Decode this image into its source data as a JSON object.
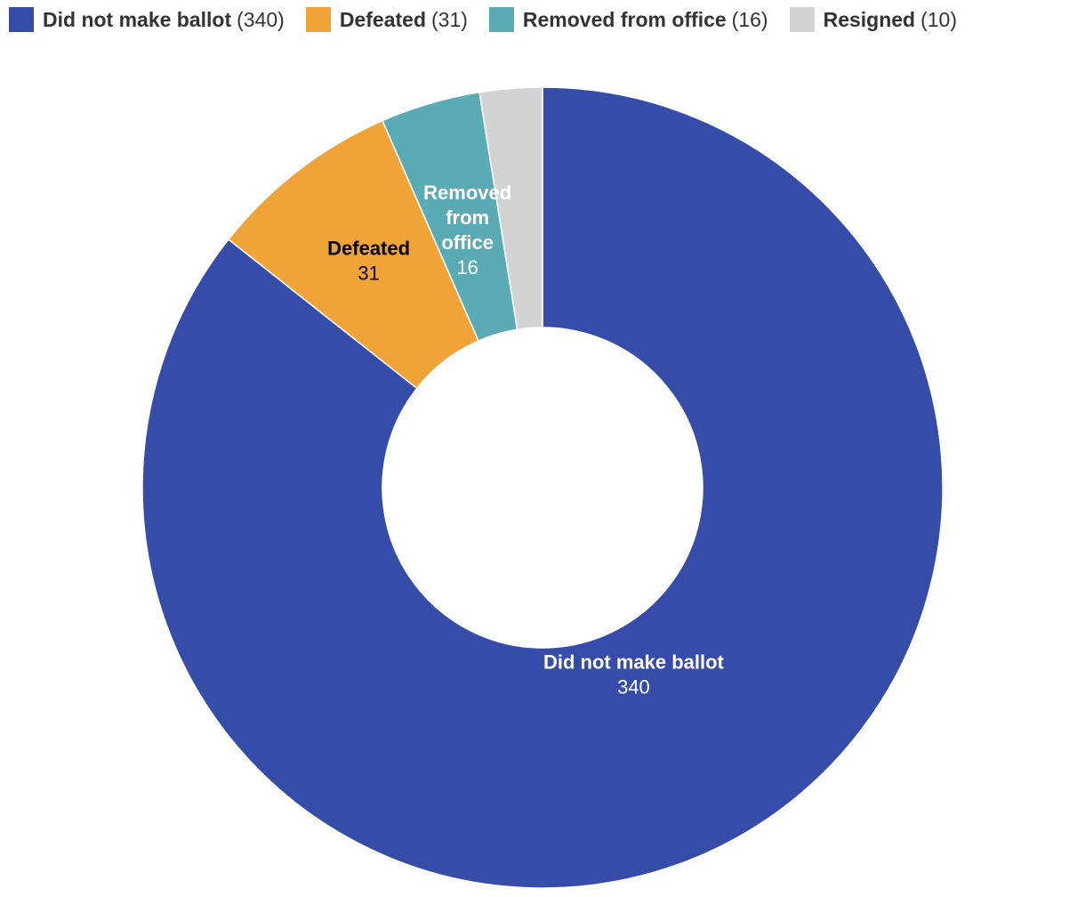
{
  "chart_data": {
    "type": "pie",
    "donut": true,
    "legend_position": "top-left",
    "series": [
      {
        "name": "Did not make ballot",
        "value": 340,
        "legend_count": "(340)",
        "color": "#354CA9",
        "label_color": "#ffffff"
      },
      {
        "name": "Defeated",
        "value": 31,
        "legend_count": "(31)",
        "color": "#F0A337",
        "label_color": "#000000"
      },
      {
        "name": "Removed from office",
        "value": 16,
        "legend_count": "(16)",
        "color": "#5BABB7",
        "label_color": "#ffffff"
      },
      {
        "name": "Resigned",
        "value": 10,
        "legend_count": "(10)",
        "color": "#D3D3D3",
        "label_color": "#000000"
      }
    ],
    "slice_labels": [
      {
        "lines": [
          "Did not make ballot"
        ],
        "value": "340"
      },
      {
        "lines": [
          "Defeated"
        ],
        "value": "31"
      },
      {
        "lines": [
          "Removed",
          "from",
          "office"
        ],
        "value": "16"
      },
      null
    ]
  }
}
